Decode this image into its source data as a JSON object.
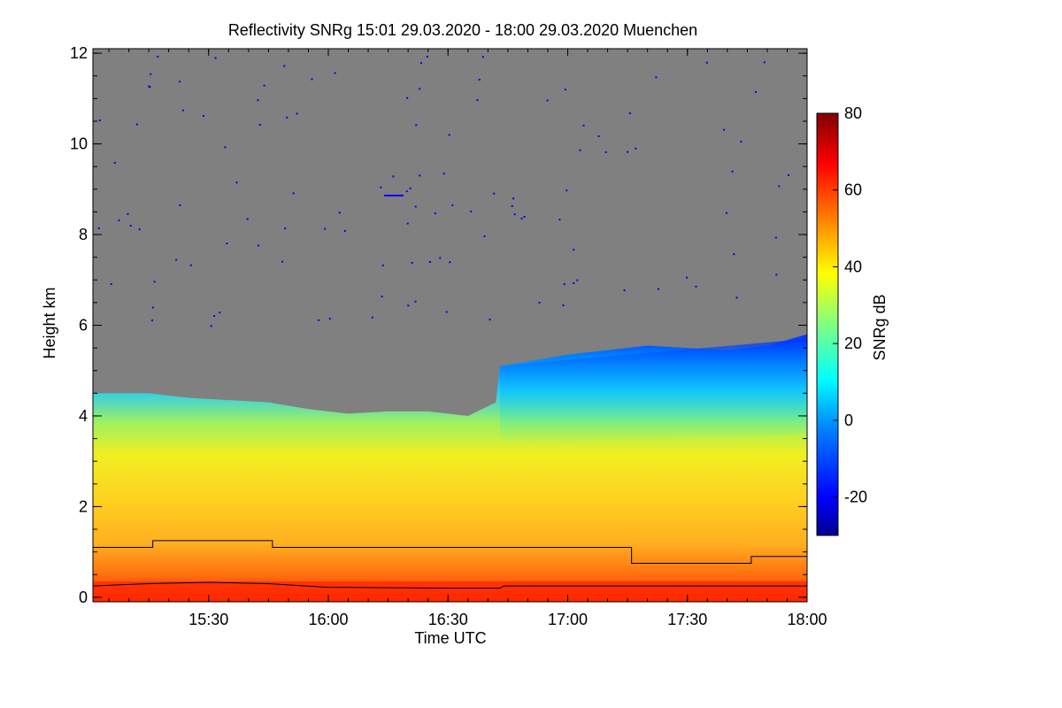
{
  "chart_data": {
    "type": "heatmap",
    "title": "Reflectivity SNRg   15:01 29.03.2020 - 18:00 29.03.2020 Muenchen",
    "xlabel": "Time UTC",
    "ylabel": "Height km",
    "colorbar_label": "SNRg dB",
    "x_ticks": [
      "15:30",
      "16:00",
      "16:30",
      "17:00",
      "17:30",
      "18:00"
    ],
    "x_range_minutes_utc": [
      901,
      1080
    ],
    "x_tick_minutes_utc": [
      930,
      960,
      990,
      1020,
      1050,
      1080
    ],
    "y_ticks": [
      "0",
      "2",
      "4",
      "6",
      "8",
      "10",
      "12"
    ],
    "y_tick_values": [
      0,
      2,
      4,
      6,
      8,
      10,
      12
    ],
    "ylim": [
      -0.1,
      12.1
    ],
    "colorbar_ticks": [
      "-20",
      "0",
      "20",
      "40",
      "60",
      "80"
    ],
    "colorbar_tick_values": [
      -20,
      0,
      20,
      40,
      60,
      80
    ],
    "colorbar_range": [
      -30,
      80
    ],
    "no_signal_color": "#808080",
    "colormap": [
      "#00008f",
      "#0000ff",
      "#0080ff",
      "#00ffff",
      "#80ff80",
      "#ffff00",
      "#ff8000",
      "#ff0000",
      "#800000"
    ],
    "echo_top_km": [
      {
        "t": 901,
        "h": 4.5
      },
      {
        "t": 915,
        "h": 4.5
      },
      {
        "t": 925,
        "h": 4.4
      },
      {
        "t": 935,
        "h": 4.35
      },
      {
        "t": 945,
        "h": 4.3
      },
      {
        "t": 955,
        "h": 4.15
      },
      {
        "t": 965,
        "h": 4.05
      },
      {
        "t": 975,
        "h": 4.1
      },
      {
        "t": 985,
        "h": 4.1
      },
      {
        "t": 995,
        "h": 4.0
      },
      {
        "t": 1002,
        "h": 4.3
      },
      {
        "t": 1003,
        "h": 5.1
      },
      {
        "t": 1010,
        "h": 5.2
      },
      {
        "t": 1020,
        "h": 5.35
      },
      {
        "t": 1030,
        "h": 5.45
      },
      {
        "t": 1040,
        "h": 5.55
      },
      {
        "t": 1050,
        "h": 5.5
      },
      {
        "t": 1060,
        "h": 5.45
      },
      {
        "t": 1070,
        "h": 5.55
      },
      {
        "t": 1080,
        "h": 5.8
      }
    ],
    "upper_step_line_km": [
      {
        "t": 901,
        "h": 1.1
      },
      {
        "t": 916,
        "h": 1.1
      },
      {
        "t": 916,
        "h": 1.25
      },
      {
        "t": 946,
        "h": 1.25
      },
      {
        "t": 946,
        "h": 1.1
      },
      {
        "t": 1036,
        "h": 1.1
      },
      {
        "t": 1036,
        "h": 0.75
      },
      {
        "t": 1066,
        "h": 0.75
      },
      {
        "t": 1066,
        "h": 0.9
      },
      {
        "t": 1080,
        "h": 0.9
      }
    ],
    "lower_line_km": [
      {
        "t": 901,
        "h": 0.25
      },
      {
        "t": 915,
        "h": 0.3
      },
      {
        "t": 930,
        "h": 0.33
      },
      {
        "t": 945,
        "h": 0.3
      },
      {
        "t": 960,
        "h": 0.22
      },
      {
        "t": 990,
        "h": 0.2
      },
      {
        "t": 1003,
        "h": 0.2
      },
      {
        "t": 1004,
        "h": 0.25
      },
      {
        "t": 1020,
        "h": 0.25
      },
      {
        "t": 1040,
        "h": 0.25
      },
      {
        "t": 1060,
        "h": 0.25
      },
      {
        "t": 1080,
        "h": 0.25
      }
    ]
  }
}
